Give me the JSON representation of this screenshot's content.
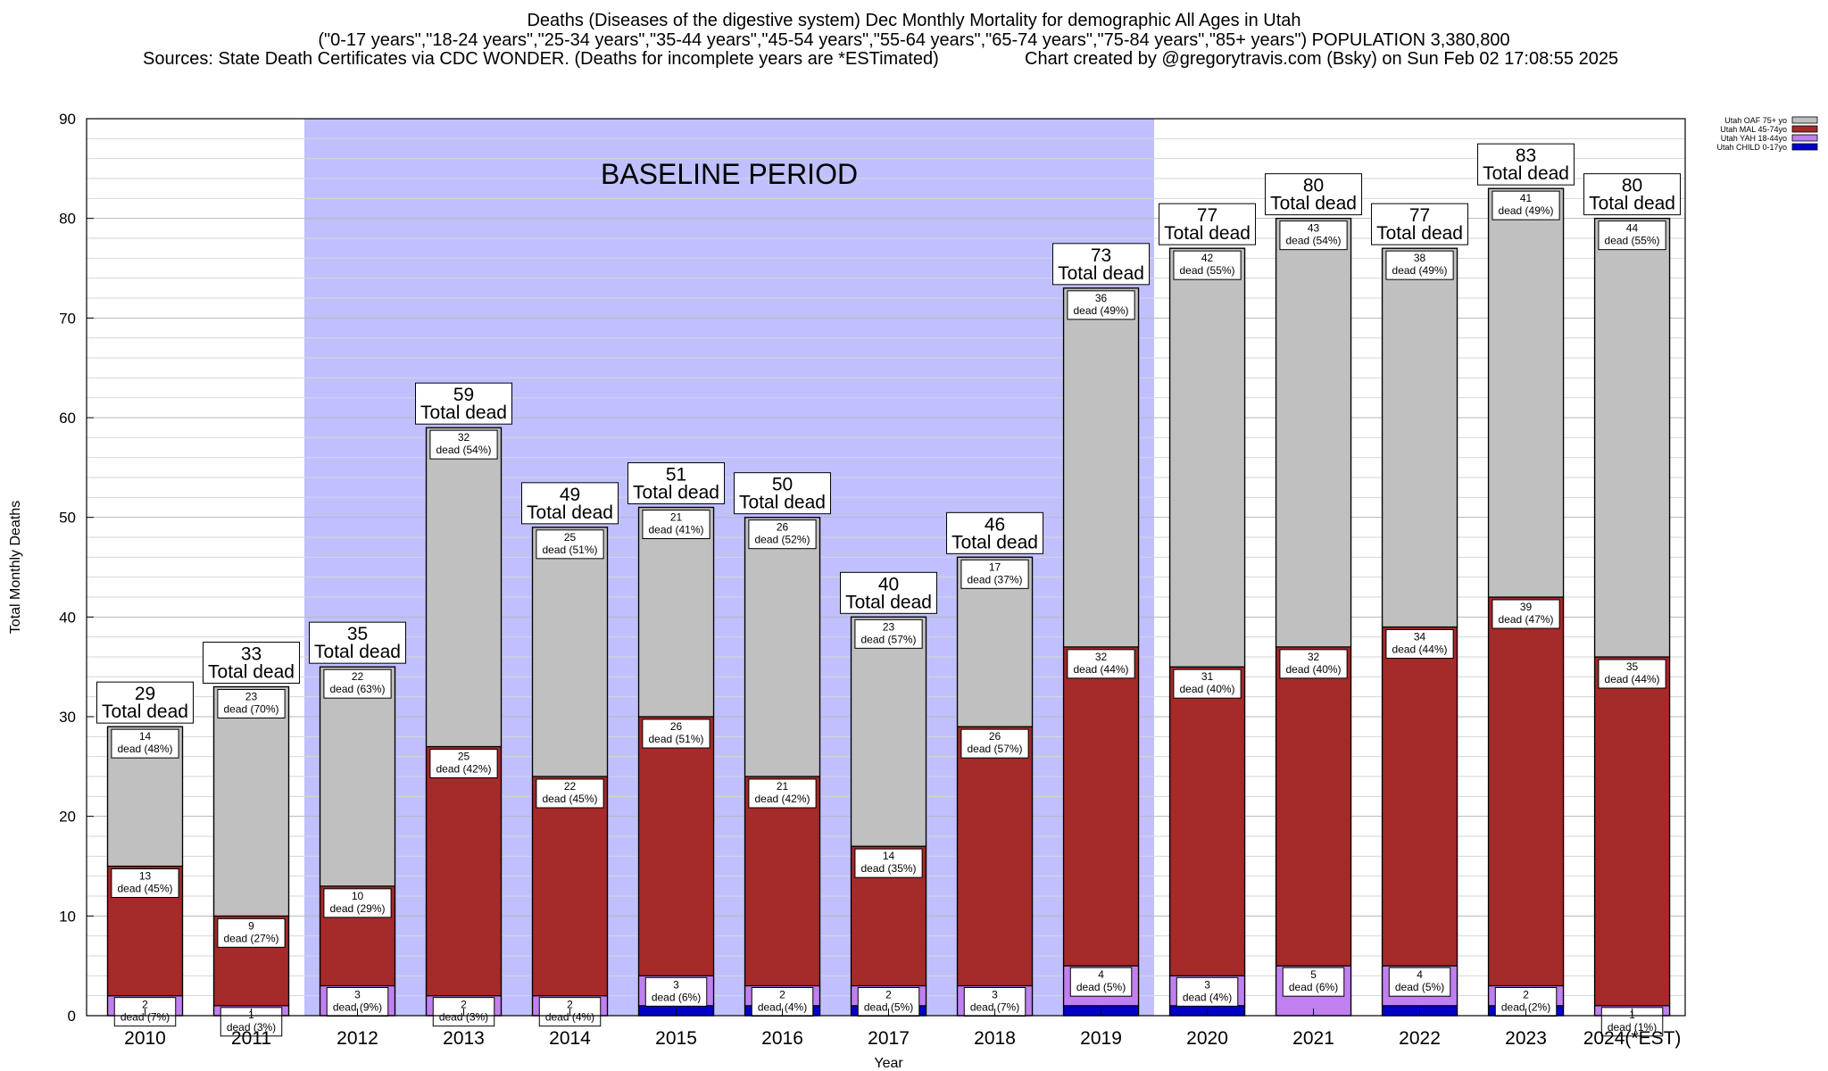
{
  "title": {
    "line1": "Deaths (Diseases of the digestive system) Dec Monthly Mortality for demographic All Ages in Utah",
    "line2": "(\"0-17 years\",\"18-24 years\",\"25-34 years\",\"35-44 years\",\"45-54 years\",\"55-64 years\",\"65-74 years\",\"75-84 years\",\"85+ years\") POPULATION 3,380,800",
    "sources": "Sources: State Death Certificates via CDC WONDER. (Deaths for incomplete years are *ESTimated)",
    "credit": "Chart created by @gregorytravis.com (Bsky) on Sun Feb 02 17:08:55 2025"
  },
  "chart_data": {
    "type": "bar",
    "stacked": true,
    "categories": [
      "2010",
      "2011",
      "2012",
      "2013",
      "2014",
      "2015",
      "2016",
      "2017",
      "2018",
      "2019",
      "2020",
      "2021",
      "2022",
      "2023",
      "2024(*EST)"
    ],
    "series": [
      {
        "name": "Utah CHILD 0-17yo",
        "color": "#0000cc",
        "values": [
          0,
          0,
          0,
          0,
          0,
          1,
          1,
          1,
          0,
          1,
          1,
          0,
          1,
          1,
          0
        ]
      },
      {
        "name": "Utah YAH 18-44yo",
        "color": "#c080f0",
        "values": [
          2,
          1,
          3,
          2,
          2,
          3,
          2,
          2,
          3,
          4,
          3,
          5,
          4,
          2,
          1
        ]
      },
      {
        "name": "Utah MAL 45-74yo",
        "color": "#a52a2a",
        "values": [
          13,
          9,
          10,
          25,
          22,
          26,
          21,
          14,
          26,
          32,
          31,
          32,
          34,
          39,
          35
        ]
      },
      {
        "name": "Utah OAF 75+ yo",
        "color": "#c0c0c0",
        "values": [
          14,
          23,
          22,
          32,
          25,
          21,
          26,
          23,
          17,
          36,
          42,
          43,
          38,
          41,
          44
        ]
      }
    ],
    "segment_labels": {
      "yah": [
        "2\ndead (7%)",
        "1\ndead (3%)",
        "3\ndead (9%)",
        "2\ndead (3%)",
        "2\ndead (4%)",
        "3\ndead (6%)",
        "2\ndead (4%)",
        "2\ndead (5%)",
        "3\ndead (7%)",
        "4\ndead (5%)",
        "3\ndead (4%)",
        "5\ndead (6%)",
        "4\ndead (5%)",
        "2\ndead (2%)",
        "1\ndead (1%)"
      ],
      "mal": [
        "13\ndead (45%)",
        "9\ndead (27%)",
        "10\ndead (29%)",
        "25\ndead (42%)",
        "22\ndead (45%)",
        "26\ndead (51%)",
        "21\ndead (42%)",
        "14\ndead (35%)",
        "26\ndead (57%)",
        "32\ndead (44%)",
        "31\ndead (40%)",
        "32\ndead (40%)",
        "34\ndead (44%)",
        "39\ndead (47%)",
        "35\ndead (44%)"
      ],
      "oaf": [
        "14\ndead (48%)",
        "23\ndead (70%)",
        "22\ndead (63%)",
        "32\ndead (54%)",
        "25\ndead (51%)",
        "21\ndead (41%)",
        "26\ndead (52%)",
        "23\ndead (57%)",
        "17\ndead (37%)",
        "36\ndead (49%)",
        "42\ndead (55%)",
        "43\ndead (54%)",
        "38\ndead (49%)",
        "41\ndead (49%)",
        "44\ndead (55%)"
      ]
    },
    "totals": [
      29,
      33,
      35,
      59,
      49,
      51,
      50,
      40,
      46,
      73,
      77,
      80,
      77,
      83,
      80
    ],
    "total_label": "Total dead",
    "baseline": {
      "label": "BASELINE PERIOD",
      "from": "2012",
      "to": "2019",
      "color": "#c0c0ff"
    },
    "xlabel": "Year",
    "ylabel": "Total Monthly Deaths",
    "ylim": [
      0,
      90
    ],
    "yticks": [
      0,
      10,
      20,
      30,
      40,
      50,
      60,
      70,
      80,
      90
    ],
    "grid": true,
    "legend_position": "top-right"
  }
}
